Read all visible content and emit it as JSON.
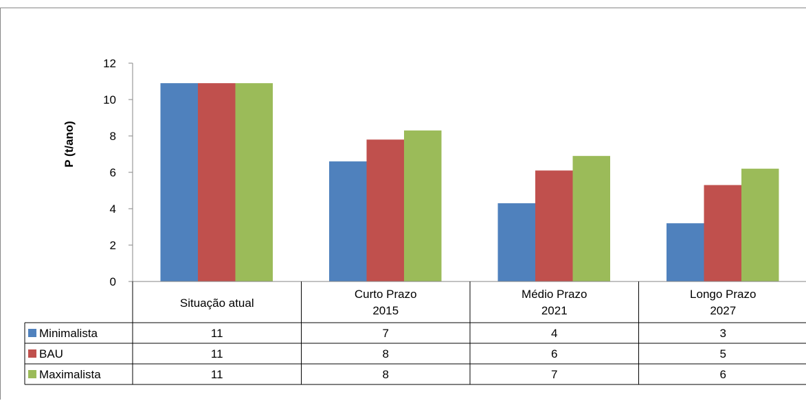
{
  "chart_data": {
    "type": "bar",
    "title": "",
    "xlabel": "",
    "ylabel": "P (t/ano)",
    "ylim": [
      0,
      12
    ],
    "yticks": [
      0,
      2,
      4,
      6,
      8,
      10,
      12
    ],
    "grid": false,
    "legend_placement": "data-table-left",
    "categories": [
      [
        "Situação atual"
      ],
      [
        "Curto Prazo",
        "2015"
      ],
      [
        "Médio Prazo",
        "2021"
      ],
      [
        "Longo Prazo",
        "2027"
      ]
    ],
    "series": [
      {
        "name": "Minimalista",
        "color": "#4f81bd",
        "values": [
          10.9,
          6.6,
          4.3,
          3.2
        ],
        "table_labels": [
          "11",
          "7",
          "4",
          "3"
        ]
      },
      {
        "name": "BAU",
        "color": "#c0504d",
        "values": [
          10.9,
          7.8,
          6.1,
          5.3
        ],
        "table_labels": [
          "11",
          "8",
          "6",
          "5"
        ]
      },
      {
        "name": "Maximalista",
        "color": "#9bbb59",
        "values": [
          10.9,
          8.3,
          6.9,
          6.2
        ],
        "table_labels": [
          "11",
          "8",
          "7",
          "6"
        ]
      }
    ]
  }
}
